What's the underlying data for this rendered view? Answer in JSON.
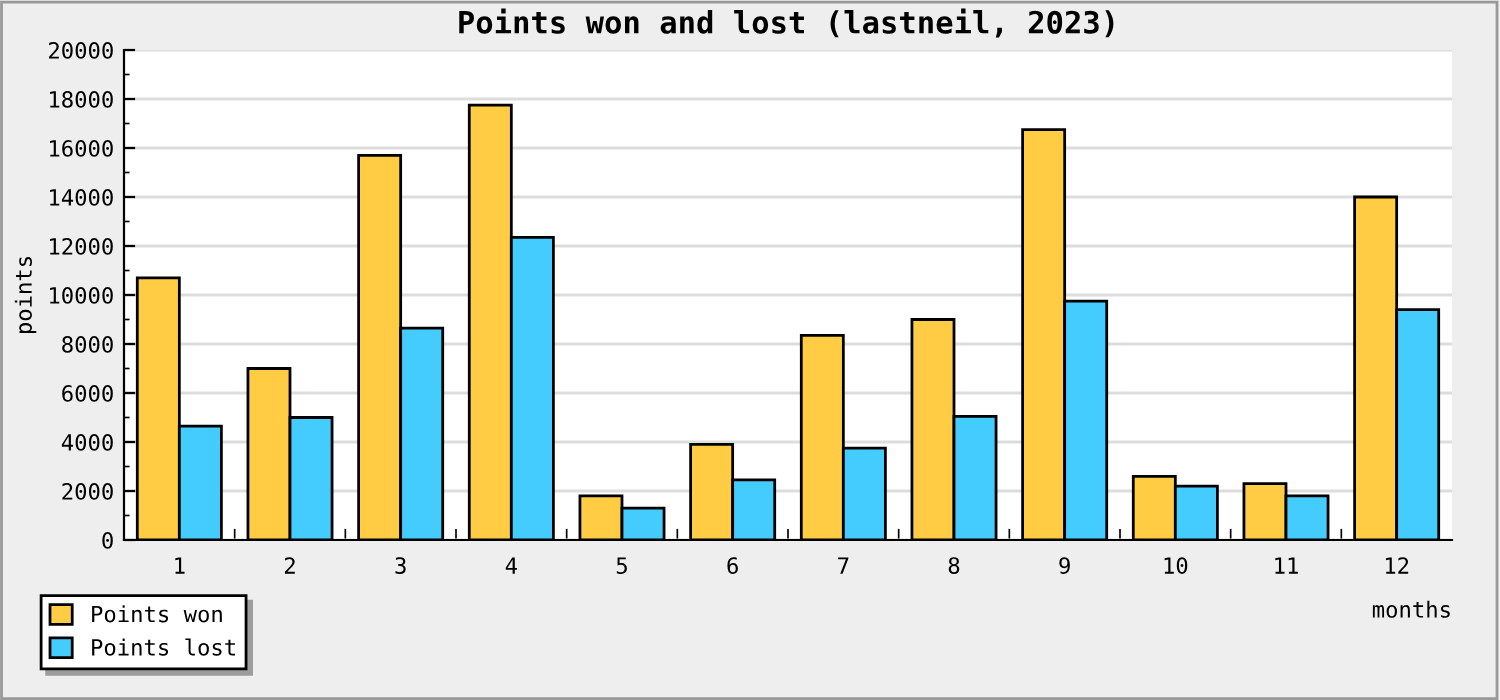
{
  "chart_data": {
    "type": "bar",
    "title": "Points won and lost (lastneil, 2023)",
    "xlabel": "months",
    "ylabel": "points",
    "categories": [
      "1",
      "2",
      "3",
      "4",
      "5",
      "6",
      "7",
      "8",
      "9",
      "10",
      "11",
      "12"
    ],
    "series": [
      {
        "name": "Points won",
        "color": "#ffcc44",
        "values": [
          10700,
          7000,
          15700,
          17750,
          1800,
          3900,
          8350,
          9000,
          16750,
          2600,
          2300,
          14000
        ]
      },
      {
        "name": "Points lost",
        "color": "#44ccff",
        "values": [
          4650,
          5000,
          8650,
          12350,
          1300,
          2450,
          3750,
          5050,
          9750,
          2200,
          1800,
          9400
        ]
      }
    ],
    "ylim": [
      0,
      20000
    ],
    "yticks": [
      0,
      2000,
      4000,
      6000,
      8000,
      10000,
      12000,
      14000,
      16000,
      18000,
      20000
    ],
    "grid": "y",
    "legend": "bottom left"
  }
}
